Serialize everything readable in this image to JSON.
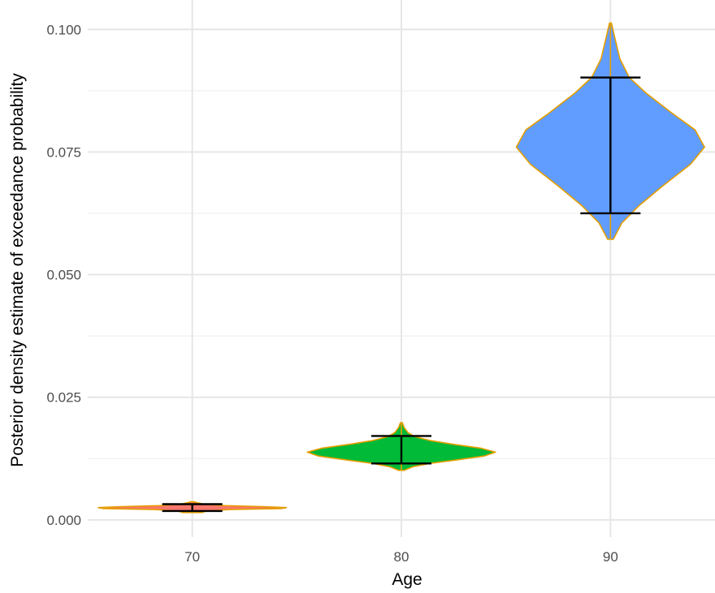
{
  "chart_data": {
    "type": "violin",
    "title": "",
    "xlabel": "Age",
    "ylabel": "Posterior density estimate of exceedance probability",
    "categories": [
      "70",
      "80",
      "90"
    ],
    "ylim": [
      -0.0035,
      0.106
    ],
    "y_ticks": [
      0.0,
      0.025,
      0.05,
      0.075,
      0.1
    ],
    "y_tick_labels": [
      "0.000",
      "0.025",
      "0.050",
      "0.075",
      "0.100"
    ],
    "grid": true,
    "legend": "none",
    "outline_color": "#E69F00",
    "errorbar_color": "#000000",
    "series": [
      {
        "category": "70",
        "fill": "#F8766D",
        "min": 0.0015,
        "max": 0.0037,
        "ci_low": 0.0018,
        "ci_high": 0.0032,
        "median": 0.0025,
        "density_shape": [
          [
            0.0015,
            0.1
          ],
          [
            0.0018,
            0.15
          ],
          [
            0.0021,
            0.4
          ],
          [
            0.0023,
            0.95
          ],
          [
            0.0025,
            1.0
          ],
          [
            0.0027,
            0.75
          ],
          [
            0.0029,
            0.35
          ],
          [
            0.0032,
            0.12
          ],
          [
            0.0035,
            0.05
          ],
          [
            0.0037,
            0.02
          ]
        ]
      },
      {
        "category": "80",
        "fill": "#00BA38",
        "min": 0.0101,
        "max": 0.0198,
        "ci_low": 0.0115,
        "ci_high": 0.0171,
        "median": 0.014,
        "density_shape": [
          [
            0.0101,
            0.03
          ],
          [
            0.0108,
            0.12
          ],
          [
            0.0115,
            0.3
          ],
          [
            0.0122,
            0.58
          ],
          [
            0.013,
            0.88
          ],
          [
            0.0138,
            1.0
          ],
          [
            0.0146,
            0.85
          ],
          [
            0.0154,
            0.55
          ],
          [
            0.0162,
            0.3
          ],
          [
            0.017,
            0.14
          ],
          [
            0.0178,
            0.07
          ],
          [
            0.0188,
            0.03
          ],
          [
            0.0198,
            0.01
          ]
        ]
      },
      {
        "category": "90",
        "fill": "#619CFF",
        "min": 0.0572,
        "max": 0.1013,
        "ci_low": 0.0625,
        "ci_high": 0.0902,
        "median": 0.0765,
        "density_shape": [
          [
            0.0572,
            0.03
          ],
          [
            0.0605,
            0.12
          ],
          [
            0.064,
            0.3
          ],
          [
            0.068,
            0.55
          ],
          [
            0.0725,
            0.85
          ],
          [
            0.076,
            1.0
          ],
          [
            0.0795,
            0.9
          ],
          [
            0.083,
            0.65
          ],
          [
            0.087,
            0.38
          ],
          [
            0.0902,
            0.2
          ],
          [
            0.094,
            0.1
          ],
          [
            0.098,
            0.05
          ],
          [
            0.1013,
            0.01
          ]
        ]
      }
    ]
  }
}
